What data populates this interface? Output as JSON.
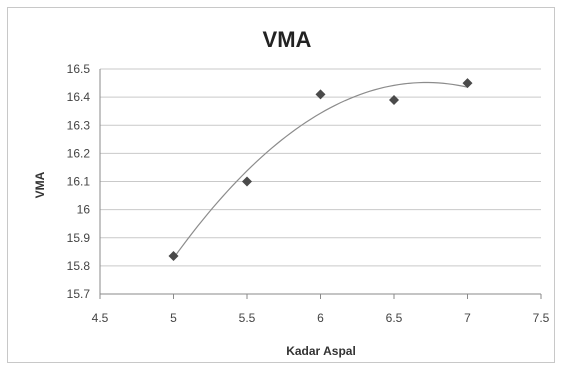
{
  "chart_data": {
    "type": "scatter",
    "title": "VMA",
    "xlabel": "Kadar Aspal",
    "ylabel": "VMA",
    "xlim": [
      4.5,
      7.5
    ],
    "ylim": [
      15.7,
      16.5
    ],
    "x_ticks": [
      "4.5",
      "5",
      "5.5",
      "6",
      "6.5",
      "7",
      "7.5"
    ],
    "y_ticks": [
      "15.7",
      "15.8",
      "15.9",
      "16",
      "16.1",
      "16.2",
      "16.3",
      "16.4",
      "16.5"
    ],
    "grid": "horizontal",
    "trendline": "polynomial",
    "points": [
      {
        "x": 5.0,
        "y": 15.835
      },
      {
        "x": 5.5,
        "y": 16.1
      },
      {
        "x": 6.0,
        "y": 16.41
      },
      {
        "x": 6.5,
        "y": 16.39
      },
      {
        "x": 7.0,
        "y": 16.45
      }
    ],
    "colors": {
      "marker": "#4a4a4a",
      "trendline": "#8c8c8c",
      "grid": "#c9c9c9"
    }
  }
}
